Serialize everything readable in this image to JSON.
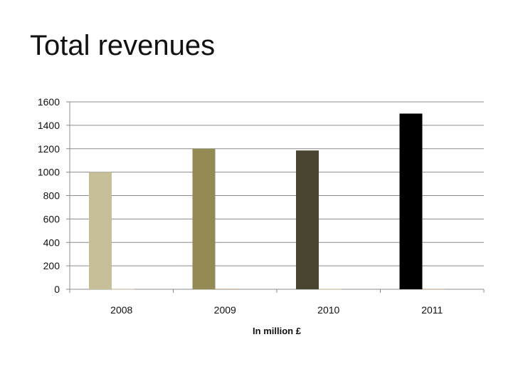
{
  "slide": {
    "title": "Total revenues"
  },
  "chart_data": {
    "type": "bar",
    "title": "",
    "xlabel": "In million £",
    "ylabel": "",
    "categories": [
      "2008",
      "2009",
      "2010",
      "2011"
    ],
    "ylim": [
      0,
      1600
    ],
    "yticks": [
      0,
      200,
      400,
      600,
      800,
      1000,
      1200,
      1400,
      1600
    ],
    "series": [
      {
        "values": [
          1000,
          1200,
          1185,
          1500
        ]
      },
      {
        "values": [
          2,
          5,
          3,
          4
        ]
      }
    ],
    "primary_bar_colors": [
      "#c6bf98",
      "#948a54",
      "#4a4530",
      "#000000"
    ],
    "secondary_bar_color": "#d2b48c",
    "grid": true,
    "legend": "none"
  }
}
